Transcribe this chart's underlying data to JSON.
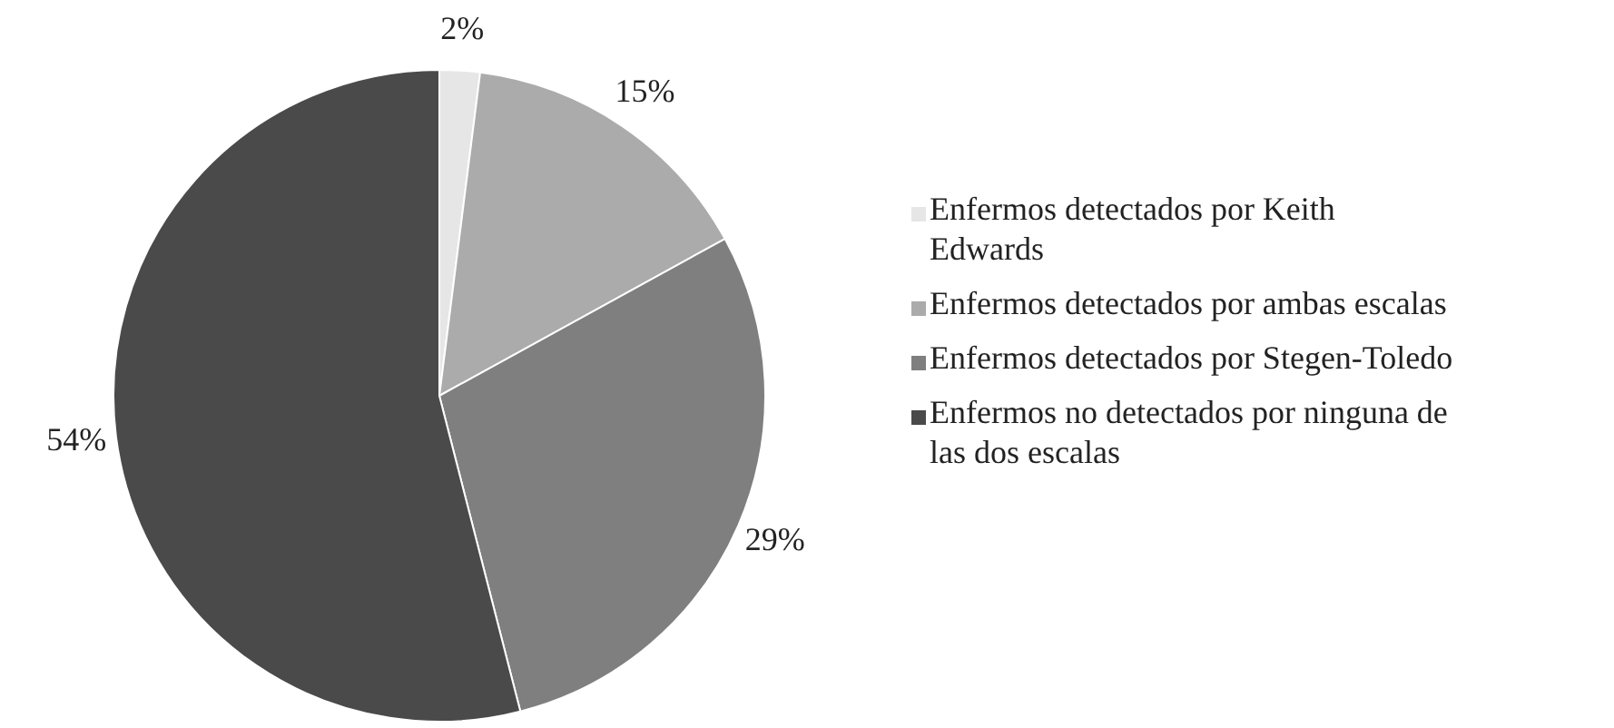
{
  "chart_data": {
    "type": "pie",
    "categories": [
      "Enfermos detectados por Keith Edwards",
      "Enfermos detectados por ambas escalas",
      "Enfermos detectados por Stegen-Toledo",
      "Enfermos no detectados por ninguna de las dos escalas"
    ],
    "values": [
      2,
      15,
      29,
      54
    ],
    "value_labels": [
      "2%",
      "15%",
      "29%",
      "54%"
    ],
    "colors": [
      "#e6e6e6",
      "#ababab",
      "#7f7f7f",
      "#4a4a4a"
    ],
    "legend": "right"
  }
}
